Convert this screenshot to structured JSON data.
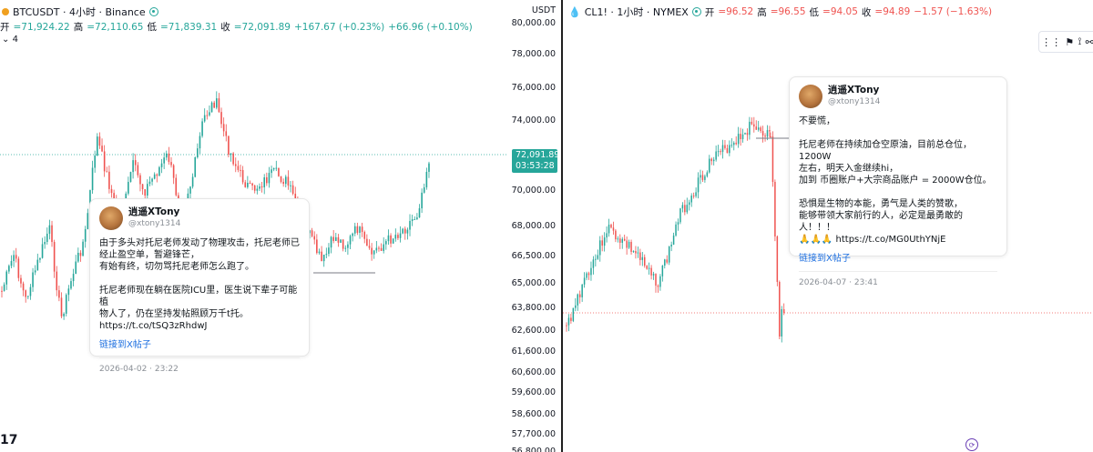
{
  "left": {
    "symbol": "BTCUSDT · 4小时 · Binance",
    "ohlc": {
      "o_label": "开",
      "o": "=71,924.22",
      "h_label": "高",
      "h": "=72,110.65",
      "l_label": "低",
      "l": "=71,839.31",
      "c_label": "收",
      "c": "=72,091.89",
      "chg": "+167.67 (+0.23%)",
      "vol": "+66.96 (+0.10%)"
    },
    "indicator_count": "4",
    "currency": "USDT",
    "axis": [
      "80,000.00",
      "78,000.00",
      "76,000.00",
      "74,000.00",
      "72,000.00",
      "70,000.00",
      "68,000.00",
      "66,500.00",
      "65,000.00",
      "63,800.00",
      "62,600.00",
      "61,600.00",
      "60,600.00",
      "59,600.00",
      "58,600.00",
      "57,700.00",
      "56,800.00"
    ],
    "price_tag": "72,091.89",
    "countdown": "03:53:28",
    "tweet": {
      "name": "逍遥XTony",
      "handle": "@xtony1314",
      "lines": [
        "由于多头对托尼老师发动了物理攻击，托尼老师已",
        "经止盈空单，暂避锋芒，",
        "有始有终，切勿骂托尼老师怎么跑了。",
        "",
        "托尼老师现在躺在医院ICU里，医生说下辈子可能植",
        "物人了，仍在坚持发帖照顾万千t托。",
        "https://t.co/tSQ3zRhdwJ"
      ],
      "link": "链接到X帖子",
      "date": "2026-04-02 · 23:22"
    },
    "logo": "17"
  },
  "right": {
    "symbol": "CL1! · 1小时 · NYMEX",
    "ohlc": {
      "o_label": "开",
      "o": "=96.52",
      "h_label": "高",
      "h": "=96.55",
      "l_label": "低",
      "l": "=94.05",
      "c_label": "收",
      "c": "=94.89",
      "chg": "−1.57 (−1.63%)"
    },
    "tweet": {
      "name": "逍遥XTony",
      "handle": "@xtony1314",
      "lines": [
        "不要慌，",
        "",
        "托尼老师在持续加仓空原油，目前总仓位，1200W",
        "左右，明天入金继续hi，",
        "加到 币圈账户+大宗商品账户 = 2000W仓位。",
        "",
        "恐惧是生物的本能，勇气是人类的赞歌，",
        "能够带领大家前行的人，必定是最勇敢的人！！！",
        "🙏🙏🙏  https://t.co/MG0UthYNjE"
      ],
      "link": "链接到X帖子",
      "date": "2026-04-07 · 23:41"
    },
    "toolbar_icons": [
      "drag-handle-icon",
      "flag-icon",
      "tree-icon",
      "link-icon"
    ]
  },
  "colors": {
    "up": "#26a69a",
    "down": "#ef5350",
    "link": "#1d6fe0"
  }
}
